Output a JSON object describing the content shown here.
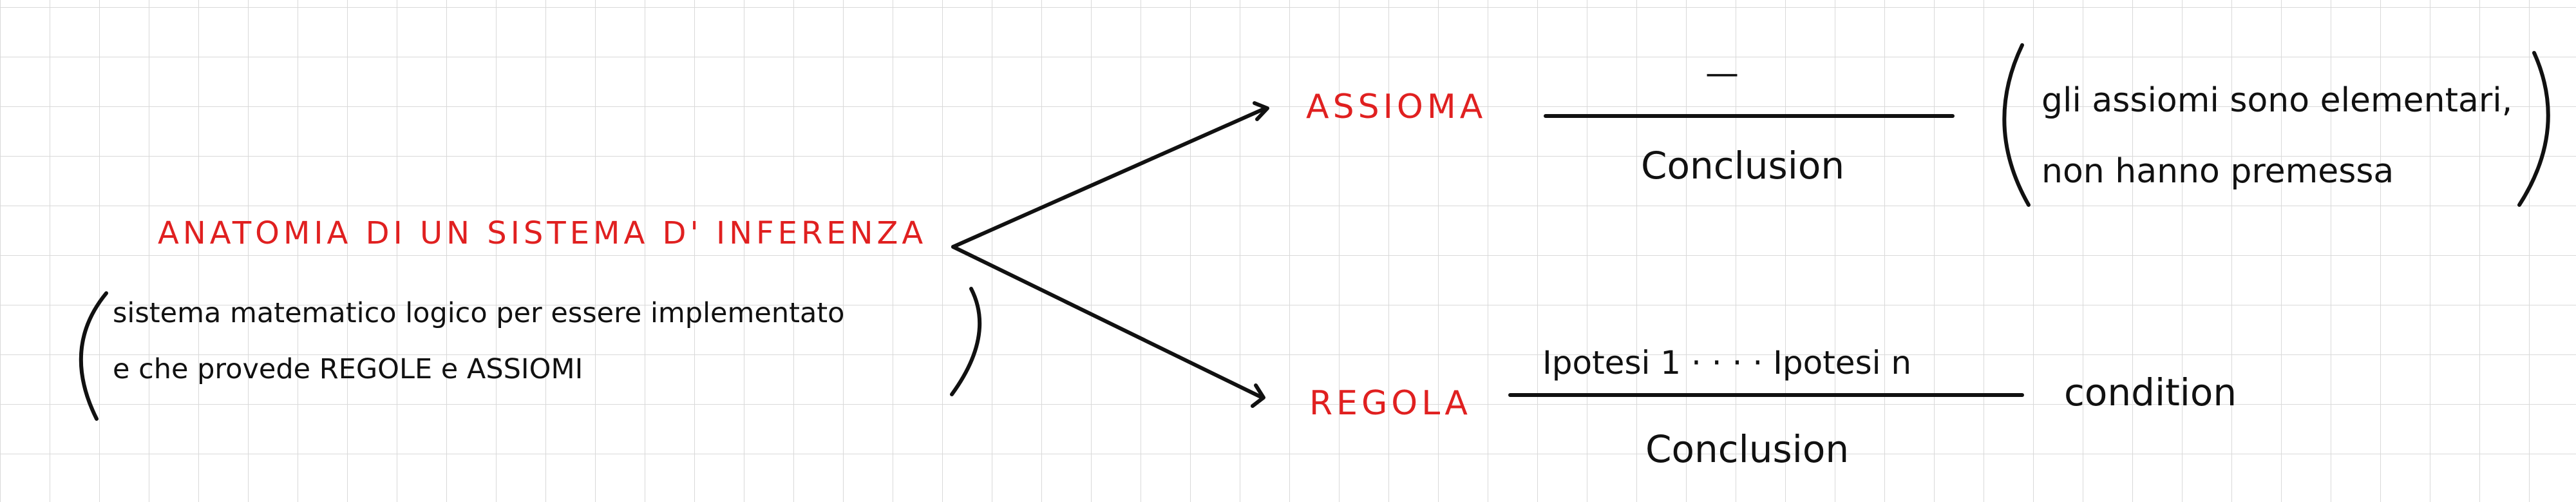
{
  "diagram": {
    "title": "ANATOMIA DI UN SISTEMA D' INFERENZA",
    "description_line1": "sistema matematico logico per essere implementato",
    "description_line2": "e che provede REGOLE e ASSIOMI",
    "axiom": {
      "label": "ASSIOMA",
      "premise": "—",
      "conclusion": "Conclusion",
      "note_line1": "gli assiomi sono elementari,",
      "note_line2": "non hanno premessa"
    },
    "rule": {
      "label": "REGOLA",
      "premise": "Ipotesi 1 · · · · Ipotesi n",
      "conclusion": "Conclusion",
      "side_condition": "condition"
    },
    "colors": {
      "ink": "#111111",
      "highlight": "#e02020",
      "grid": "#d9d9d9"
    }
  }
}
